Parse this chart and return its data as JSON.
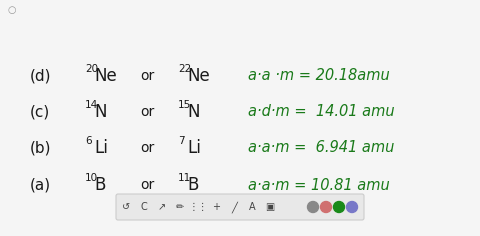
{
  "background_color": "#f5f5f5",
  "text_color_black": "#1a1a1a",
  "text_color_green": "#1a7a1a",
  "figsize": [
    4.8,
    2.36
  ],
  "dpi": 100,
  "lines": [
    {
      "label": "(a)",
      "iso1_super": "10",
      "iso1_base": "B",
      "iso2_super": "11",
      "iso2_base": "B",
      "result_left": "a·a·m = 10.81 amu"
    },
    {
      "label": "(b)",
      "iso1_super": "6",
      "iso1_base": "Li",
      "iso2_super": "7",
      "iso2_base": "Li",
      "result_left": "a·a·m =  6.941 amu"
    },
    {
      "label": "(c)",
      "iso1_super": "14",
      "iso1_base": "N",
      "iso2_super": "15",
      "iso2_base": "N",
      "result_left": "a·d·m =  14.01 amu"
    },
    {
      "label": "(d)",
      "iso1_super": "20",
      "iso1_base": "Ne",
      "iso2_super": "22",
      "iso2_base": "Ne",
      "result_left": "a·a ·m = 20.18amu"
    }
  ],
  "toolbar": {
    "icons": [
      "5",
      "C",
      "→",
      "∕",
      "∷",
      "+",
      "∕",
      "A",
      "▣"
    ],
    "circle_colors": [
      "#888888",
      "#d07070",
      "#1a8a1a",
      "#7878c8"
    ],
    "bg_color": "#e8e8e8",
    "border_color": "#cccccc"
  }
}
